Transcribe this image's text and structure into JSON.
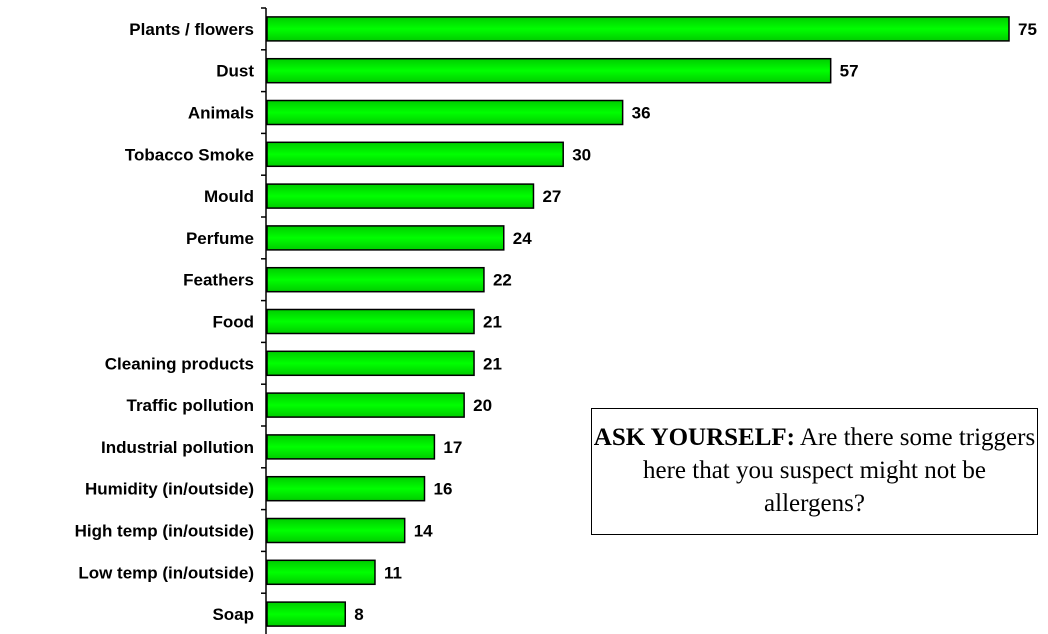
{
  "chart_data": {
    "type": "bar",
    "orientation": "horizontal",
    "categories": [
      "Plants / flowers",
      "Dust",
      "Animals",
      "Tobacco Smoke",
      "Mould",
      "Perfume",
      "Feathers",
      "Food",
      "Cleaning products",
      "Traffic pollution",
      "Industrial pollution",
      "Humidity (in/outside)",
      "High temp (in/outside)",
      "Low temp (in/outside)",
      "Soap"
    ],
    "values": [
      75,
      57,
      36,
      30,
      27,
      24,
      22,
      21,
      21,
      20,
      17,
      16,
      14,
      11,
      8
    ],
    "xlim": [
      0,
      75
    ],
    "bar_color": "#00ee00",
    "data_labels": true,
    "grid": false
  },
  "callout": {
    "heading": "ASK YOURSELF:",
    "text": " Are there some triggers here that you suspect might not be allergens?"
  }
}
